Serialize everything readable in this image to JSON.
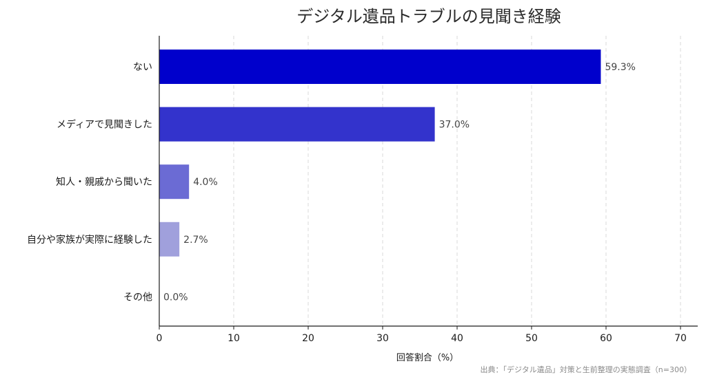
{
  "chart_data": {
    "type": "bar",
    "orientation": "horizontal",
    "title": "デジタル遺品トラブルの見聞き経験",
    "categories": [
      "ない",
      "メディアで見聞きした",
      "知人・親戚から聞いた",
      "自分や家族が実際に経験した",
      "その他"
    ],
    "values": [
      59.3,
      37.0,
      4.0,
      2.7,
      0.0
    ],
    "value_labels": [
      "59.3%",
      "37.0%",
      "4.0%",
      "2.7%",
      "0.0%"
    ],
    "bar_colors": [
      "#0000cc",
      "#3333cc",
      "#6b6bd4",
      "#a0a0dc",
      "#d0d0ee"
    ],
    "xlabel": "回答割合（%）",
    "xlim": [
      0,
      72
    ],
    "xticks": [
      0,
      10,
      20,
      30,
      40,
      50,
      60,
      70
    ],
    "xtick_labels": [
      "0",
      "10",
      "20",
      "30",
      "40",
      "50",
      "60",
      "70"
    ],
    "grid": "vertical-dashed",
    "source": "出典：「デジタル遺品」対策と生前整理の実態調査（n=300）"
  }
}
